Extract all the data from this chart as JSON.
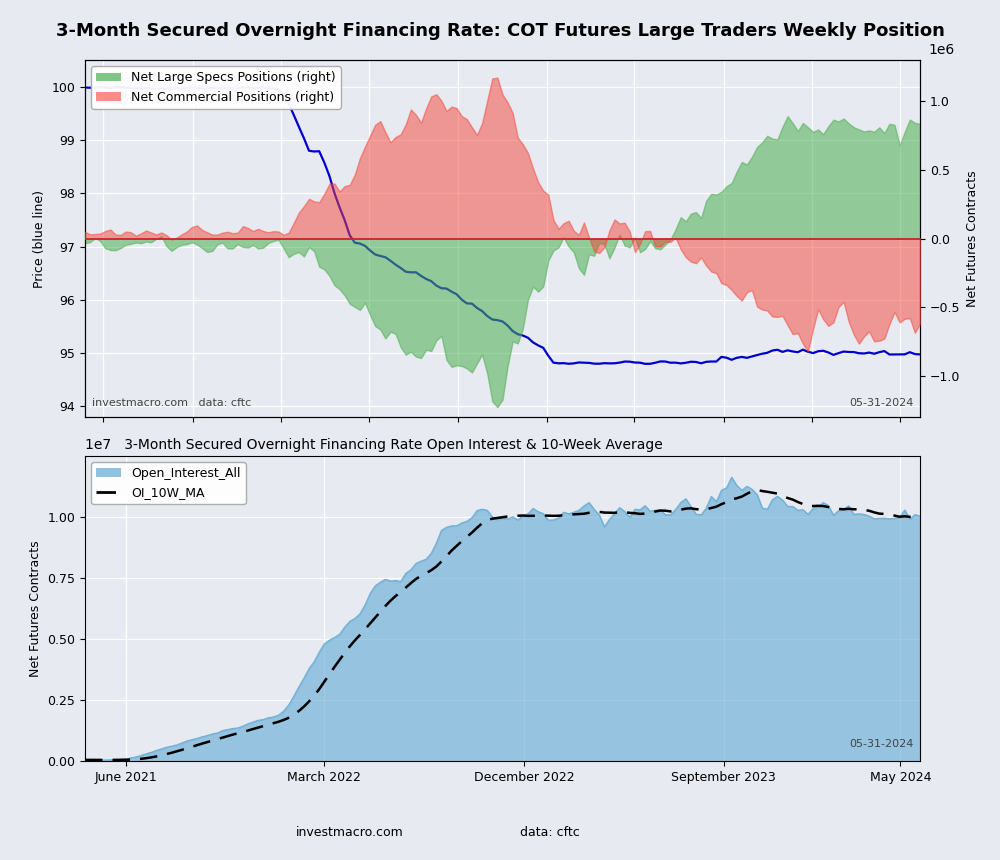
{
  "title": "3-Month Secured Overnight Financing Rate: COT Futures Large Traders Weekly Position",
  "title2": "3-Month Secured Overnight Financing Rate Open Interest & 10-Week Average",
  "bg_color": "#e8eaf2",
  "plot_bg_color": "#e8eaf2",
  "footer_left": "investmacro.com   data: cftc",
  "footer_right": "05-31-2024",
  "ax1_ylabel": "Price (blue line)",
  "ax2_ylabel": "Net Futures Contracts",
  "ax3_ylabel": "Net Futures Contracts",
  "legend1_green": "Net Large Specs Positions (right)",
  "legend1_red": "Net Commercial Positions (right)",
  "legend2_blue": "Open_Interest_All",
  "legend2_dashed": "OI_10W_MA",
  "green_color": "#4CAF50",
  "green_alpha": 0.55,
  "red_color": "#f44336",
  "red_alpha": 0.5,
  "blue_line_color": "#0000CD",
  "oi_fill_color": "#6baed6",
  "oi_fill_alpha": 0.65,
  "price_ylim": [
    93.8,
    100.5
  ],
  "cot_ylim": [
    -1.3,
    1.3
  ],
  "oi_ylim": [
    0,
    12500000.0
  ]
}
